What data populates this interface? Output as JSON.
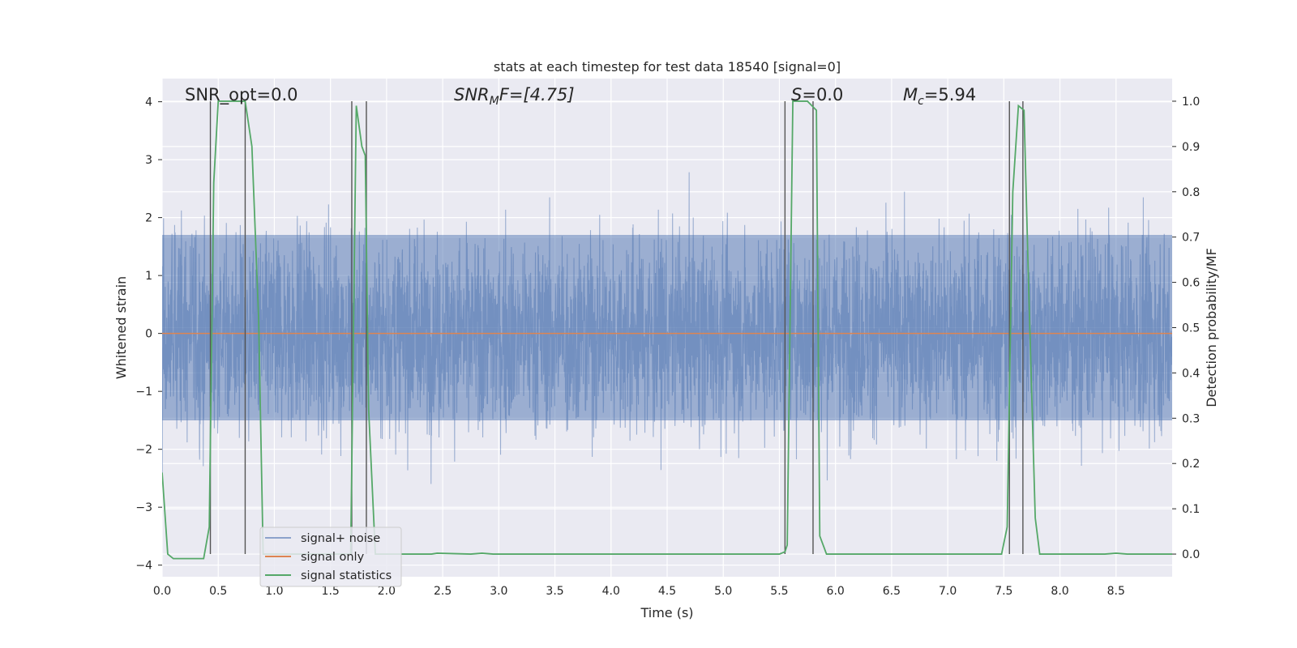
{
  "chart_data": {
    "type": "line",
    "title": "stats at each timestep for test data 18540 [signal=0]",
    "xlabel": "Time (s)",
    "ylabel": "Whitened strain",
    "y2label": "Detection probability/MF",
    "xlim": [
      0,
      9.0
    ],
    "ylim": [
      -4.2,
      4.4
    ],
    "y2lim": [
      -0.05,
      1.05
    ],
    "x_ticks": [
      0.0,
      0.5,
      1.0,
      1.5,
      2.0,
      2.5,
      3.0,
      3.5,
      4.0,
      4.5,
      5.0,
      5.5,
      6.0,
      6.5,
      7.0,
      7.5,
      8.0,
      8.5
    ],
    "x_tick_labels": [
      "0.0",
      "0.5",
      "1.0",
      "1.5",
      "2.0",
      "2.5",
      "3.0",
      "3.5",
      "4.0",
      "4.5",
      "5.0",
      "5.5",
      "6.0",
      "6.5",
      "7.0",
      "7.5",
      "8.0",
      "8.5"
    ],
    "y_ticks": [
      4,
      3,
      2,
      1,
      0,
      -1,
      -2,
      -3,
      -4
    ],
    "y_tick_labels": [
      "4",
      "3",
      "2",
      "1",
      "0",
      "−1",
      "−2",
      "−3",
      "−4"
    ],
    "y2_ticks": [
      1.0,
      0.9,
      0.8,
      0.7,
      0.6,
      0.5,
      0.4,
      0.3,
      0.2,
      0.1,
      0.0
    ],
    "y2_tick_labels": [
      "1.0",
      "0.9",
      "0.8",
      "0.7",
      "0.6",
      "0.5",
      "0.4",
      "0.3",
      "0.2",
      "0.1",
      "0.0"
    ],
    "grid": true,
    "legend_placement": "lower-left",
    "annotations": {
      "snr_opt": "SNR_opt=0.0",
      "snr_mf_prefix": "SNR",
      "snr_mf_sub": "M",
      "snr_mf_suffix": "F=[4.75]",
      "s_prefix": "S",
      "s_suffix": "=0.0",
      "mc_prefix": "M",
      "mc_sub": "c",
      "mc_suffix": "=5.94"
    },
    "series": [
      {
        "name": "signal+ noise",
        "color": "#4c72b0",
        "opacity": 0.5,
        "description_of_values": "dense whitened noise, core amplitude about ±1.5, peaks reaching about ±4",
        "core_band": [
          -1.5,
          1.7
        ]
      },
      {
        "name": "signal only",
        "color": "#dd8452",
        "x": [
          0.0,
          9.0
        ],
        "y": [
          0.0,
          0.0
        ]
      },
      {
        "name": "signal statistics",
        "color": "#55a868",
        "x": [
          0.0,
          0.05,
          0.1,
          0.25,
          0.37,
          0.42,
          0.46,
          0.5,
          0.6,
          0.74,
          0.8,
          0.86,
          0.9,
          1.68,
          1.73,
          1.78,
          1.81,
          1.84,
          1.9,
          2.4,
          2.45,
          2.75,
          2.85,
          2.95,
          3.5,
          5.5,
          5.55,
          5.57,
          5.62,
          5.75,
          5.83,
          5.86,
          5.92,
          5.98,
          7.48,
          7.53,
          7.58,
          7.63,
          7.68,
          7.72,
          7.78,
          7.82,
          8.4,
          8.5,
          8.6,
          9.0
        ],
        "y": [
          0.18,
          0.0,
          -0.01,
          -0.01,
          -0.01,
          0.06,
          0.82,
          1.0,
          1.0,
          1.0,
          0.9,
          0.52,
          0.0,
          0.0,
          0.99,
          0.9,
          0.88,
          0.32,
          0.0,
          0.0,
          0.002,
          0.0,
          0.002,
          0.0,
          0.0,
          0.0,
          0.005,
          0.02,
          1.0,
          1.0,
          0.98,
          0.04,
          0.0,
          0.0,
          0.0,
          0.06,
          0.8,
          0.99,
          0.98,
          0.6,
          0.08,
          0.0,
          0.0,
          0.002,
          0.0,
          0.0
        ]
      }
    ],
    "vertical_lines_x": [
      0.43,
      0.74,
      1.69,
      1.82,
      5.55,
      5.8,
      7.55,
      7.67
    ]
  }
}
